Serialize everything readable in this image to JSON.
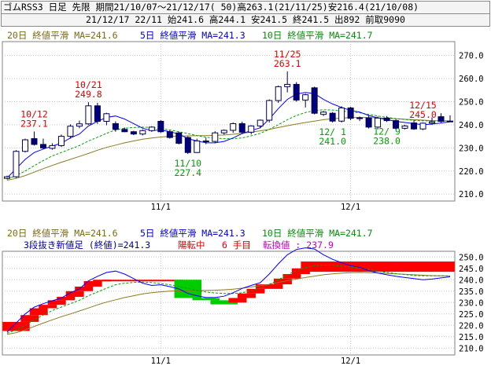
{
  "header": {
    "line1": "ゴムRSS3 日足 先限 期間21/10/07～21/12/17( 50)高263.1(21/11/25)安216.4(21/10/08)",
    "line2": "21/12/17 22/11 始241.6 高244.1 安241.5 終241.5 出892 前取9090"
  },
  "top_legend": {
    "ma20": "20日 終値平滑 MA=241.6",
    "ma5": "5日 終値平滑 MA=241.3",
    "ma10": "10日 終値平滑 MA=241.7"
  },
  "bottom_legend": {
    "ma20": "20日 終値平滑 MA=241.6",
    "ma5": "5日 終値平滑 MA=241.3",
    "ma10": "10日 終値平滑 MA=241.7",
    "renko_label": "3段抜き新値足 (終値)=241.3",
    "renko_state": "陽転中",
    "renko_count": "6 手目",
    "renko_reversal": "転換値 : 237.9"
  },
  "colors": {
    "up_candle": "#ffffff",
    "down_candle": "#00007c",
    "ma5": "#0000ff",
    "ma10": "#00a000",
    "ma20": "#8b7a20",
    "renko_up": "#ff0000",
    "renko_down": "#00cc00",
    "annot_red": "#e00000",
    "annot_green": "#00a000"
  },
  "chart_data": [
    {
      "type": "candlestick",
      "ylim": [
        207,
        276
      ],
      "yticks": [
        "210.0",
        "220.0",
        "230.0",
        "240.0",
        "250.0",
        "260.0",
        "270.0"
      ],
      "xticks": [
        {
          "label": "11/1",
          "index": 17
        },
        {
          "label": "12/1",
          "index": 38
        }
      ],
      "candles": [
        {
          "o": 216.8,
          "h": 218.0,
          "l": 216.4,
          "c": 217.5
        },
        {
          "o": 217.5,
          "h": 229.0,
          "l": 217.0,
          "c": 228.5
        },
        {
          "o": 228.5,
          "h": 234.0,
          "l": 228.0,
          "c": 233.5
        },
        {
          "o": 234.0,
          "h": 237.1,
          "l": 231.0,
          "c": 231.5
        },
        {
          "o": 231.5,
          "h": 234.0,
          "l": 229.5,
          "c": 230.0
        },
        {
          "o": 229.8,
          "h": 232.0,
          "l": 229.2,
          "c": 231.0
        },
        {
          "o": 231.0,
          "h": 235.8,
          "l": 230.4,
          "c": 235.0
        },
        {
          "o": 235.0,
          "h": 240.2,
          "l": 234.0,
          "c": 239.4
        },
        {
          "o": 239.4,
          "h": 241.8,
          "l": 238.5,
          "c": 240.4
        },
        {
          "o": 240.4,
          "h": 249.8,
          "l": 240.0,
          "c": 248.2
        },
        {
          "o": 248.2,
          "h": 249.5,
          "l": 240.4,
          "c": 241.5
        },
        {
          "o": 241.5,
          "h": 245.2,
          "l": 239.8,
          "c": 244.8
        },
        {
          "o": 240.5,
          "h": 241.5,
          "l": 237.0,
          "c": 238.0
        },
        {
          "o": 238.0,
          "h": 238.8,
          "l": 236.8,
          "c": 237.0
        },
        {
          "o": 237.0,
          "h": 237.4,
          "l": 235.5,
          "c": 236.0
        },
        {
          "o": 236.0,
          "h": 238.0,
          "l": 235.4,
          "c": 237.5
        },
        {
          "o": 237.5,
          "h": 239.4,
          "l": 236.9,
          "c": 239.0
        },
        {
          "o": 241.5,
          "h": 242.0,
          "l": 236.5,
          "c": 237.0
        },
        {
          "o": 237.0,
          "h": 237.6,
          "l": 234.0,
          "c": 234.5
        },
        {
          "o": 236.5,
          "h": 237.0,
          "l": 231.5,
          "c": 232.0
        },
        {
          "o": 234.5,
          "h": 235.0,
          "l": 227.4,
          "c": 228.0
        },
        {
          "o": 228.0,
          "h": 234.0,
          "l": 227.8,
          "c": 233.0
        },
        {
          "o": 233.0,
          "h": 234.4,
          "l": 231.6,
          "c": 232.8
        },
        {
          "o": 232.8,
          "h": 237.2,
          "l": 232.0,
          "c": 236.5
        },
        {
          "o": 236.5,
          "h": 238.0,
          "l": 235.7,
          "c": 237.6
        },
        {
          "o": 237.6,
          "h": 241.0,
          "l": 236.5,
          "c": 240.5
        },
        {
          "o": 240.5,
          "h": 241.4,
          "l": 236.0,
          "c": 236.8
        },
        {
          "o": 236.8,
          "h": 239.8,
          "l": 235.8,
          "c": 239.5
        },
        {
          "o": 239.5,
          "h": 242.3,
          "l": 238.5,
          "c": 242.0
        },
        {
          "o": 242.0,
          "h": 251.0,
          "l": 241.0,
          "c": 250.5
        },
        {
          "o": 250.5,
          "h": 257.0,
          "l": 249.5,
          "c": 256.5
        },
        {
          "o": 256.5,
          "h": 263.1,
          "l": 254.0,
          "c": 257.5
        },
        {
          "o": 257.5,
          "h": 258.5,
          "l": 250.0,
          "c": 250.7
        },
        {
          "o": 250.7,
          "h": 253.5,
          "l": 247.5,
          "c": 253.0
        },
        {
          "o": 256.0,
          "h": 256.5,
          "l": 244.5,
          "c": 245.0
        },
        {
          "o": 244.5,
          "h": 246.0,
          "l": 243.8,
          "c": 245.5
        },
        {
          "o": 245.0,
          "h": 245.5,
          "l": 241.0,
          "c": 241.6
        },
        {
          "o": 241.6,
          "h": 248.0,
          "l": 241.0,
          "c": 247.3
        },
        {
          "o": 247.3,
          "h": 247.8,
          "l": 242.0,
          "c": 242.8
        },
        {
          "o": 242.8,
          "h": 243.6,
          "l": 241.6,
          "c": 243.0
        },
        {
          "o": 243.0,
          "h": 244.2,
          "l": 238.4,
          "c": 239.0
        },
        {
          "o": 239.0,
          "h": 243.6,
          "l": 238.0,
          "c": 242.9
        },
        {
          "o": 242.9,
          "h": 243.8,
          "l": 241.2,
          "c": 241.8
        },
        {
          "o": 241.8,
          "h": 242.4,
          "l": 238.0,
          "c": 238.5
        },
        {
          "o": 238.5,
          "h": 240.0,
          "l": 238.0,
          "c": 239.5
        },
        {
          "o": 240.8,
          "h": 242.0,
          "l": 237.8,
          "c": 238.2
        },
        {
          "o": 238.2,
          "h": 241.0,
          "l": 237.7,
          "c": 240.7
        },
        {
          "o": 240.7,
          "h": 243.2,
          "l": 240.0,
          "c": 241.3
        },
        {
          "o": 243.5,
          "h": 245.0,
          "l": 241.0,
          "c": 241.5
        },
        {
          "o": 241.6,
          "h": 244.1,
          "l": 241.5,
          "c": 241.5
        }
      ],
      "ma5": [
        217.0,
        221.0,
        225.0,
        228.0,
        229.5,
        230.8,
        232.0,
        234.3,
        236.0,
        239.5,
        241.5,
        243.2,
        243.8,
        242.5,
        240.5,
        238.5,
        237.5,
        237.8,
        237.0,
        236.0,
        234.0,
        233.0,
        232.2,
        232.2,
        232.8,
        234.3,
        236.2,
        237.5,
        238.7,
        242.5,
        247.0,
        251.0,
        253.3,
        254.0,
        253.5,
        251.0,
        249.0,
        247.5,
        246.2,
        245.5,
        244.0,
        243.0,
        242.2,
        241.5,
        241.0,
        240.5,
        240.0,
        240.3,
        240.8,
        241.3
      ],
      "ma10": [
        216.5,
        218.0,
        220.0,
        222.3,
        224.5,
        226.5,
        228.0,
        229.5,
        231.0,
        233.0,
        234.6,
        236.3,
        237.8,
        238.5,
        238.8,
        239.0,
        238.8,
        238.3,
        237.8,
        237.0,
        236.2,
        235.3,
        234.6,
        234.2,
        234.0,
        234.0,
        234.3,
        235.2,
        236.3,
        238.0,
        240.0,
        242.2,
        244.0,
        245.3,
        246.2,
        246.5,
        246.4,
        246.0,
        245.6,
        245.2,
        244.5,
        243.8,
        243.2,
        242.7,
        242.3,
        241.9,
        241.7,
        241.7,
        241.7,
        241.7
      ],
      "ma20": [
        216.0,
        216.8,
        218.0,
        219.5,
        221.0,
        222.4,
        223.8,
        225.0,
        226.3,
        227.6,
        229.0,
        230.2,
        231.2,
        232.2,
        233.0,
        233.8,
        234.3,
        234.7,
        235.0,
        235.1,
        235.2,
        235.3,
        235.3,
        235.4,
        235.6,
        235.9,
        236.3,
        236.8,
        237.4,
        238.0,
        238.8,
        239.6,
        240.3,
        241.0,
        241.6,
        242.2,
        242.6,
        242.9,
        243.1,
        243.2,
        243.1,
        243.0,
        242.8,
        242.6,
        242.4,
        242.2,
        242.0,
        241.8,
        241.7,
        241.6
      ],
      "annotations": [
        {
          "text": "10/12",
          "value": "237.1",
          "index": 3,
          "color": "red",
          "pos": "above"
        },
        {
          "text": "10/21",
          "value": "249.8",
          "index": 9,
          "color": "red",
          "pos": "above"
        },
        {
          "text": "11/25",
          "value": "263.1",
          "index": 31,
          "color": "red",
          "pos": "above"
        },
        {
          "text": "12/15",
          "value": "245.0",
          "index": 46,
          "color": "red",
          "pos": "above"
        },
        {
          "text": "11/10",
          "value": "227.4",
          "index": 20,
          "color": "green",
          "pos": "below"
        },
        {
          "text": "12/ 1",
          "value": "241.0",
          "index": 36,
          "color": "green",
          "pos": "below"
        },
        {
          "text": "12/ 9",
          "value": "238.0",
          "index": 42,
          "color": "green",
          "pos": "below"
        }
      ]
    },
    {
      "type": "renko",
      "ylim": [
        207,
        252.5
      ],
      "yticks": [
        "210.0",
        "215.0",
        "220.0",
        "225.0",
        "230.0",
        "235.0",
        "240.0",
        "245.0",
        "250.0"
      ],
      "xticks": [
        {
          "label": "11/1",
          "index": 17
        },
        {
          "label": "12/1",
          "index": 38
        }
      ],
      "bricks": [
        {
          "s": 0,
          "e": 2,
          "lo": 217.5,
          "hi": 221.5,
          "dir": "up"
        },
        {
          "s": 2,
          "e": 3,
          "lo": 221.5,
          "hi": 224.5,
          "dir": "up"
        },
        {
          "s": 3,
          "e": 4,
          "lo": 224.5,
          "hi": 227.5,
          "dir": "up"
        },
        {
          "s": 4,
          "e": 5,
          "lo": 227.5,
          "hi": 229.0,
          "dir": "up"
        },
        {
          "s": 5,
          "e": 6,
          "lo": 229.0,
          "hi": 231.0,
          "dir": "up"
        },
        {
          "s": 6,
          "e": 7,
          "lo": 231.0,
          "hi": 232.5,
          "dir": "up"
        },
        {
          "s": 7,
          "e": 8,
          "lo": 232.5,
          "hi": 235.0,
          "dir": "up"
        },
        {
          "s": 8,
          "e": 9,
          "lo": 235.0,
          "hi": 237.0,
          "dir": "up"
        },
        {
          "s": 9,
          "e": 10,
          "lo": 237.0,
          "hi": 239.4,
          "dir": "up"
        },
        {
          "s": 10,
          "e": 11,
          "lo": 239.4,
          "hi": 240.0,
          "dir": "up"
        },
        {
          "s": 11,
          "e": 19,
          "lo": 239.6,
          "hi": 240.0,
          "dir": "up"
        },
        {
          "s": 19,
          "e": 21,
          "lo": 232.0,
          "hi": 240.0,
          "dir": "down"
        },
        {
          "s": 21,
          "e": 23,
          "lo": 231.0,
          "hi": 232.0,
          "dir": "down"
        },
        {
          "s": 23,
          "e": 25,
          "lo": 229.2,
          "hi": 231.0,
          "dir": "down"
        },
        {
          "s": 25,
          "e": 26,
          "lo": 230.0,
          "hi": 232.0,
          "dir": "up"
        },
        {
          "s": 26,
          "e": 27,
          "lo": 232.0,
          "hi": 234.0,
          "dir": "up"
        },
        {
          "s": 27,
          "e": 28,
          "lo": 234.0,
          "hi": 236.0,
          "dir": "up"
        },
        {
          "s": 28,
          "e": 30,
          "lo": 236.0,
          "hi": 238.0,
          "dir": "up"
        },
        {
          "s": 30,
          "e": 31,
          "lo": 238.0,
          "hi": 240.5,
          "dir": "up"
        },
        {
          "s": 31,
          "e": 32,
          "lo": 240.5,
          "hi": 242.5,
          "dir": "up"
        },
        {
          "s": 32,
          "e": 33,
          "lo": 242.5,
          "hi": 245.0,
          "dir": "up"
        },
        {
          "s": 33,
          "e": 49,
          "lo": 243.5,
          "hi": 248.0,
          "dir": "up"
        }
      ],
      "ma5": [
        217.0,
        221.0,
        225.0,
        228.0,
        229.5,
        230.8,
        232.0,
        234.3,
        236.0,
        239.5,
        241.5,
        243.2,
        243.8,
        242.5,
        240.5,
        238.5,
        237.5,
        237.8,
        237.0,
        236.0,
        234.0,
        233.0,
        232.2,
        232.2,
        232.8,
        234.3,
        236.2,
        237.5,
        238.7,
        242.5,
        247.0,
        251.0,
        253.3,
        254.0,
        253.5,
        251.0,
        249.0,
        247.5,
        246.2,
        245.5,
        244.0,
        243.0,
        242.2,
        241.5,
        241.0,
        240.5,
        240.0,
        240.3,
        240.8,
        241.3
      ],
      "ma10": [
        216.5,
        218.0,
        220.0,
        222.3,
        224.5,
        226.5,
        228.0,
        229.5,
        231.0,
        233.0,
        234.6,
        236.3,
        237.8,
        238.5,
        238.8,
        239.0,
        238.8,
        238.3,
        237.8,
        237.0,
        236.2,
        235.3,
        234.6,
        234.2,
        234.0,
        234.0,
        234.3,
        235.2,
        236.3,
        238.0,
        240.0,
        242.2,
        244.0,
        245.3,
        246.2,
        246.5,
        246.4,
        246.0,
        245.6,
        245.2,
        244.5,
        243.8,
        243.2,
        242.7,
        242.3,
        241.9,
        241.7,
        241.7,
        241.7,
        241.7
      ],
      "ma20": [
        216.0,
        216.8,
        218.0,
        219.5,
        221.0,
        222.4,
        223.8,
        225.0,
        226.3,
        227.6,
        229.0,
        230.2,
        231.2,
        232.2,
        233.0,
        233.8,
        234.3,
        234.7,
        235.0,
        235.1,
        235.2,
        235.3,
        235.3,
        235.4,
        235.6,
        235.9,
        236.3,
        236.8,
        237.4,
        238.0,
        238.8,
        239.6,
        240.3,
        241.0,
        241.6,
        242.2,
        242.6,
        242.9,
        243.1,
        243.2,
        243.1,
        243.0,
        242.8,
        242.6,
        242.4,
        242.2,
        242.0,
        241.8,
        241.7,
        241.6
      ]
    }
  ]
}
